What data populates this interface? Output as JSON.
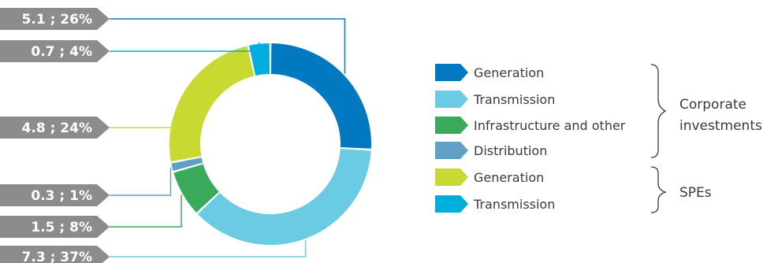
{
  "chart_data": {
    "type": "pie",
    "donut": true,
    "title": "",
    "slices": [
      {
        "category": "Corporate investments",
        "name": "Generation",
        "value": 5.1,
        "percent": 26,
        "label": "5.1 ; 26%",
        "color": "#0079c1"
      },
      {
        "category": "Corporate investments",
        "name": "Transmission",
        "value": 7.3,
        "percent": 37,
        "label": "7.3 ; 37%",
        "color": "#6bcbe3"
      },
      {
        "category": "Corporate investments",
        "name": "Infrastructure and other",
        "value": 1.5,
        "percent": 8,
        "label": "1.5 ; 8%",
        "color": "#3aaa5c"
      },
      {
        "category": "Corporate investments",
        "name": "Distribution",
        "value": 0.3,
        "percent": 1,
        "label": "0.3 ; 1%",
        "color": "#5fa0c4"
      },
      {
        "category": "SPEs",
        "name": "Generation",
        "value": 4.8,
        "percent": 24,
        "label": "4.8 ; 24%",
        "color": "#c8d932"
      },
      {
        "category": "SPEs",
        "name": "Transmission",
        "value": 0.7,
        "percent": 4,
        "label": "0.7 ; 4%",
        "color": "#00aede"
      }
    ],
    "legend": {
      "items": [
        {
          "label": "Generation",
          "color": "#0079c1"
        },
        {
          "label": "Transmission",
          "color": "#6bcbe3"
        },
        {
          "label": "Infrastructure and other",
          "color": "#3aaa5c"
        },
        {
          "label": "Distribution",
          "color": "#5fa0c4"
        },
        {
          "label": "Generation",
          "color": "#c8d932"
        },
        {
          "label": "Transmission",
          "color": "#00aede"
        }
      ],
      "groups": [
        {
          "label_lines": [
            "Corporate",
            "investments"
          ]
        },
        {
          "label_lines": [
            "SPEs"
          ]
        }
      ]
    },
    "label_box_color": "#8c8c8c"
  }
}
